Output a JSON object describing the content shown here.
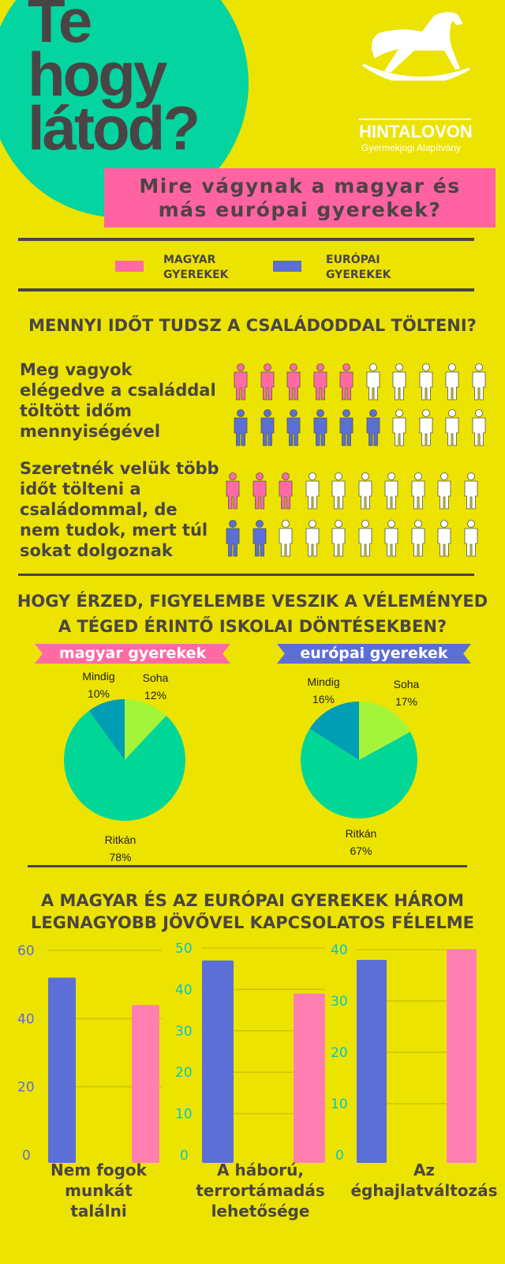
{
  "header": {
    "title_lines": [
      "Te",
      "hogy",
      "látod?"
    ],
    "brand": "HINTALOVON",
    "brand_sub": "Gyermekjogi Alapítvány",
    "subtitle_lines": [
      "Mire vágynak a magyar és",
      "más európai gyerekek?"
    ]
  },
  "colors": {
    "background": "#ede300",
    "magyar": "#ff6aa5",
    "europai": "#5b6fd6",
    "circle": "#04d49f",
    "text": "#4a4545"
  },
  "legend": [
    {
      "label_lines": [
        "MAGYAR",
        "GYEREKEK"
      ],
      "color": "#ff6aa5"
    },
    {
      "label_lines": [
        "EURÓPAI",
        "GYEREKEK"
      ],
      "color": "#5b6fd6"
    }
  ],
  "section1": {
    "heading": "MENNYI IDŐT TUDSZ A CSALÁDODDAL TÖLTENI?",
    "questions": [
      {
        "text_lines": [
          "Meg vagyok",
          "elégedve a családdal",
          "töltött időm",
          "mennyiségével"
        ],
        "magyar_of_10": 5,
        "europai_of_10": 6
      },
      {
        "text_lines": [
          "Szeretnék velük több",
          "időt tölteni a",
          "családommal, de",
          "nem tudok, mert túl",
          "sokat dolgoznak"
        ],
        "magyar_of_10": 3,
        "europai_of_10": 2
      }
    ]
  },
  "section2": {
    "heading_lines": [
      "HOGY ÉRZED, FIGYELEMBE VESZIK A VÉLEMÉNYED",
      "A TÉGED ÉRINTŐ ISKOLAI DÖNTÉSEKBEN?"
    ]
  },
  "section3": {
    "heading_lines": [
      "A MAGYAR ÉS AZ EURÓPAI GYEREKEK HÁROM",
      "LEGNAGYOBB JÖVŐVEL KAPCSOLATOS FÉLELME"
    ]
  },
  "chart_data": [
    {
      "type": "pie",
      "title": "magyar gyerekek",
      "slices": [
        {
          "label": "Soha",
          "value": 12,
          "pct": "12%",
          "color": "#a4f53a"
        },
        {
          "label": "Ritkán",
          "value": 78,
          "pct": "78%",
          "color": "#00d796"
        },
        {
          "label": "Mindig",
          "value": 10,
          "pct": "10%",
          "color": "#009eb4"
        }
      ]
    },
    {
      "type": "pie",
      "title": "európai gyerekek",
      "slices": [
        {
          "label": "Soha",
          "value": 17,
          "pct": "17%",
          "color": "#a4f53a"
        },
        {
          "label": "Ritkán",
          "value": 67,
          "pct": "67%",
          "color": "#00d796"
        },
        {
          "label": "Mindig",
          "value": 16,
          "pct": "16%",
          "color": "#009eb4"
        }
      ]
    },
    {
      "type": "bar",
      "category_lines": [
        "Nem fogok",
        "munkát",
        "találni"
      ],
      "ylim": [
        0,
        60
      ],
      "ticks": [
        "0",
        "20",
        "40",
        "60"
      ],
      "tick_color": "#5b6fd6",
      "values": [
        52,
        44
      ],
      "colors": [
        "#5b6fd6",
        "#ff80b0"
      ]
    },
    {
      "type": "bar",
      "category_lines": [
        "A háború,",
        "terrortámadás",
        "lehetősége"
      ],
      "ylim": [
        0,
        50
      ],
      "ticks": [
        "0",
        "10",
        "20",
        "30",
        "40",
        "50"
      ],
      "tick_color": "#00c8c8",
      "values": [
        47,
        39
      ],
      "colors": [
        "#5b6fd6",
        "#ff80b0"
      ]
    },
    {
      "type": "bar",
      "category_lines": [
        "Az",
        "éghajlatváltozás"
      ],
      "ylim": [
        0,
        40
      ],
      "ticks": [
        "0",
        "10",
        "20",
        "30",
        "40"
      ],
      "tick_color": "#00c8c8",
      "values": [
        38,
        40
      ],
      "colors": [
        "#5b6fd6",
        "#ff80b0"
      ]
    }
  ]
}
